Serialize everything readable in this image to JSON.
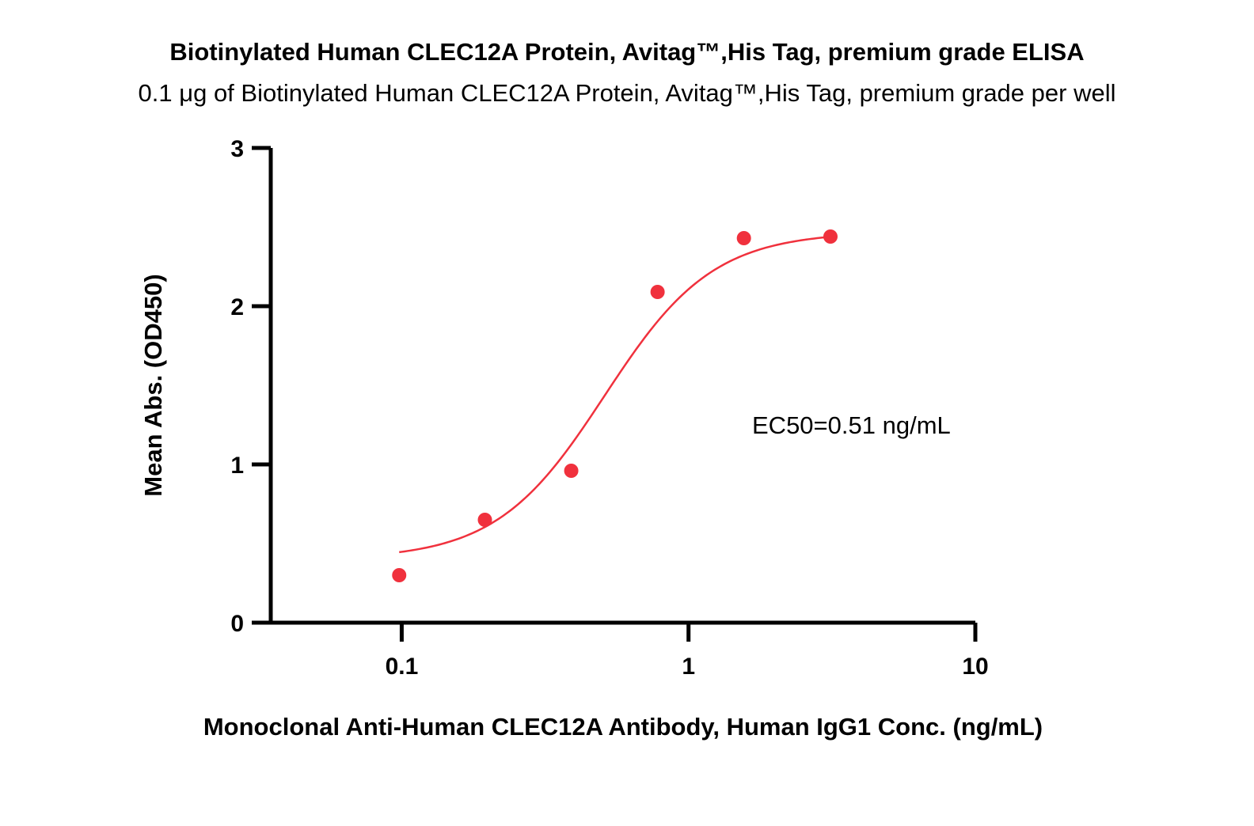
{
  "chart_data": {
    "type": "scatter",
    "title": "Biotinylated Human CLEC12A Protein, Avitag™,His Tag, premium grade ELISA",
    "subtitle": "0.1 μg of Biotinylated Human CLEC12A Protein, Avitag™,His Tag, premium grade per well",
    "xlabel": "Monoclonal Anti-Human CLEC12A Antibody, Human IgG1 Conc. (ng/mL)",
    "ylabel": "Mean Abs. (OD450)",
    "x_scale": "log",
    "xlim": [
      0.03,
      10
    ],
    "ylim": [
      0,
      3
    ],
    "x_ticks": [
      0.1,
      1,
      10
    ],
    "x_tick_labels": [
      "0.1",
      "1",
      "10"
    ],
    "y_ticks": [
      0,
      1,
      2,
      3
    ],
    "y_tick_labels": [
      "0",
      "1",
      "2",
      "3"
    ],
    "grid": false,
    "series": [
      {
        "x": [
          0.098,
          0.195,
          0.39,
          0.78,
          1.56,
          3.125
        ],
        "y": [
          0.3,
          0.65,
          0.96,
          2.09,
          2.43,
          2.44
        ],
        "color": "#f0313d",
        "fit": "4PL",
        "fit_params": {
          "bottom": 0.4,
          "top": 2.47,
          "ec50": 0.51,
          "hill": 2.3
        }
      }
    ],
    "annotations": [
      {
        "text": "EC50=0.51 ng/mL"
      }
    ]
  }
}
